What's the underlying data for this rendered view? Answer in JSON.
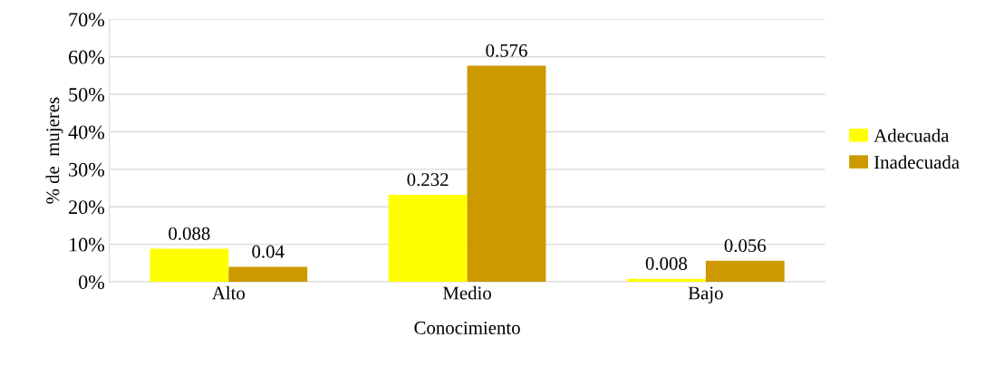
{
  "chart_data": {
    "type": "bar",
    "xlabel": "Conocimiento",
    "ylabel": "% de  mujeres",
    "categories": [
      "Alto",
      "Medio",
      "Bajo"
    ],
    "series": [
      {
        "name": "Adecuada",
        "color": "#ffff00",
        "values": [
          0.088,
          0.232,
          0.008
        ]
      },
      {
        "name": "Inadecuada",
        "color": "#cc9900",
        "values": [
          0.04,
          0.576,
          0.056
        ]
      }
    ],
    "ylim": [
      0,
      0.7
    ],
    "yticks": [
      {
        "value": 0,
        "label": "0%"
      },
      {
        "value": 0.1,
        "label": "10%"
      },
      {
        "value": 0.2,
        "label": "20%"
      },
      {
        "value": 0.3,
        "label": "30%"
      },
      {
        "value": 0.4,
        "label": "40%"
      },
      {
        "value": 0.5,
        "label": "50%"
      },
      {
        "value": 0.6,
        "label": "60%"
      },
      {
        "value": 0.7,
        "label": "70%"
      }
    ],
    "grid": "y",
    "legend": "right",
    "data_labels": true
  }
}
